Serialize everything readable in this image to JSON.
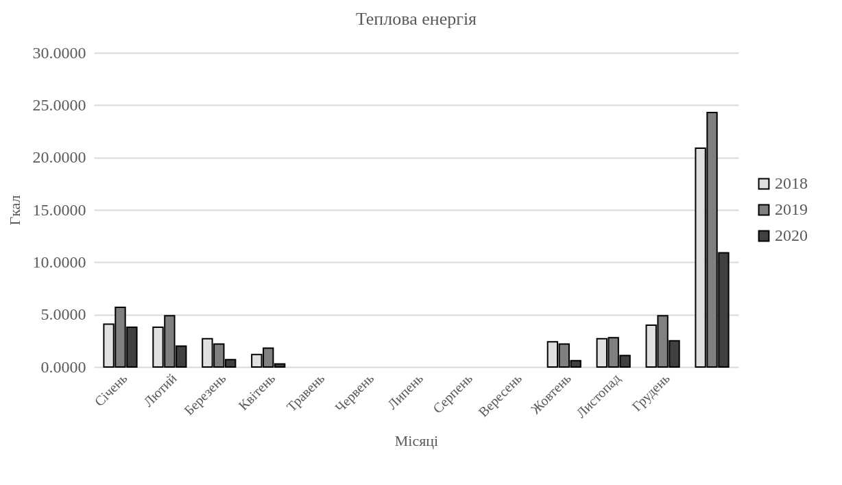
{
  "chart_data": {
    "type": "bar",
    "title": "Теплова енергія",
    "xlabel": "Місяці",
    "ylabel": "Гкал",
    "categories": [
      "Січень",
      "Лютий",
      "Березень",
      "Квітень",
      "Травень",
      "Червень",
      "Липень",
      "Серпень",
      "Вересень",
      "Жовтень",
      "Листопад",
      "Грудень",
      null
    ],
    "series": [
      {
        "name": "2018",
        "color": "#e0e0e0",
        "values": [
          4.1,
          3.8,
          2.7,
          1.2,
          null,
          null,
          null,
          null,
          null,
          2.4,
          2.7,
          4.0,
          20.9
        ]
      },
      {
        "name": "2019",
        "color": "#808080",
        "values": [
          5.7,
          4.9,
          2.2,
          1.8,
          null,
          null,
          null,
          null,
          null,
          2.2,
          2.8,
          4.9,
          24.3
        ]
      },
      {
        "name": "2020",
        "color": "#404040",
        "values": [
          3.8,
          2.0,
          0.7,
          0.3,
          null,
          null,
          null,
          null,
          null,
          0.6,
          1.1,
          2.5,
          10.9
        ]
      }
    ],
    "ylim": [
      0,
      30
    ],
    "yticks": [
      {
        "value": 0,
        "label": "0.0000"
      },
      {
        "value": 5,
        "label": "5.0000"
      },
      {
        "value": 10,
        "label": "10.0000"
      },
      {
        "value": 15,
        "label": "15.0000"
      },
      {
        "value": 20,
        "label": "20.0000"
      },
      {
        "value": 25,
        "label": "25.0000"
      },
      {
        "value": 30,
        "label": "30.0000"
      }
    ],
    "grid": "y",
    "legend": "right"
  }
}
